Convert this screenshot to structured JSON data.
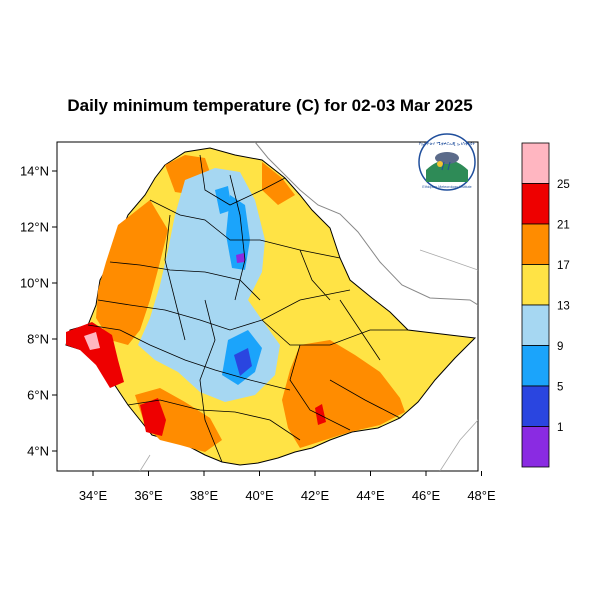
{
  "title": "Daily minimum temperature (C) for 02-03 Mar 2025",
  "map": {
    "x_ticks": [
      "34°E",
      "36°E",
      "38°E",
      "40°E",
      "42°E",
      "44°E",
      "46°E",
      "48°E"
    ],
    "y_ticks": [
      "14°N",
      "12°N",
      "10°N",
      "8°N",
      "6°N",
      "4°N"
    ],
    "x_range_deg": [
      32.8,
      48.2
    ],
    "y_range_deg": [
      3.1,
      15.0
    ]
  },
  "legend": {
    "labels": [
      "25",
      "21",
      "17",
      "13",
      "9",
      "5",
      "1"
    ],
    "colors": [
      "#ffb6c1",
      "#ee0000",
      "#ff8c00",
      "#ffe345",
      "#a6d7f2",
      "#1ba4fb",
      "#2a45e0",
      "#8a2be2"
    ]
  },
  "logo": {
    "name": "ethiopian-meteorology-institute-logo",
    "top_text": "የኢትዮጵያ ሜቲዎሮሎጂ ኢንስቲትዩት",
    "bottom_text": "Ethiopian Meteorology Institute"
  }
}
